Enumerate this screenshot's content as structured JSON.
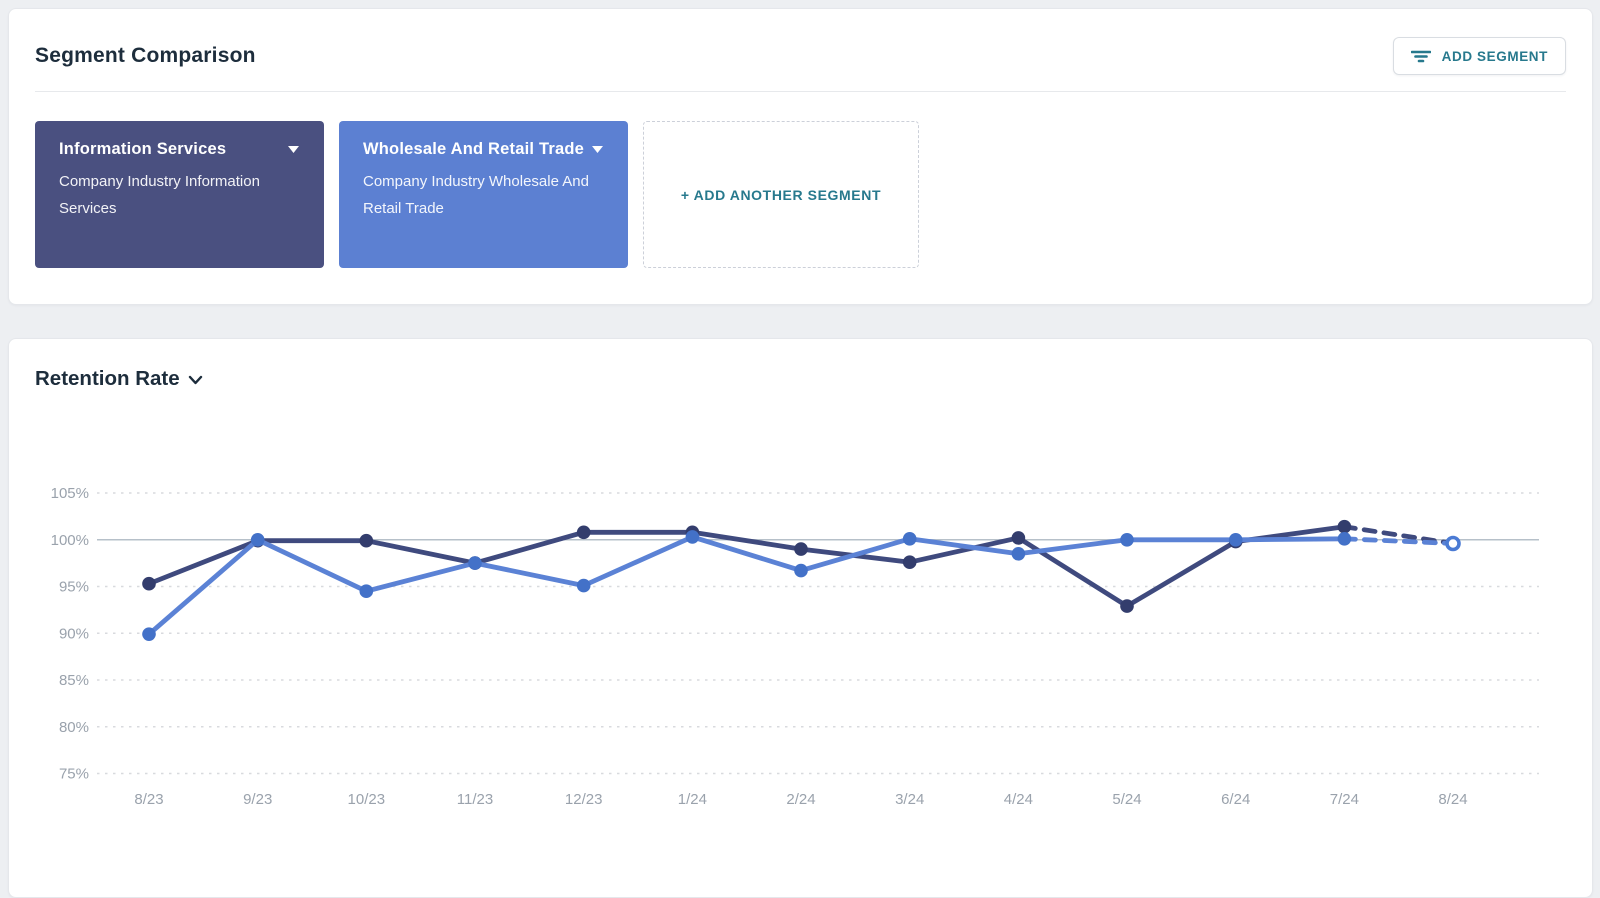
{
  "header": {
    "title": "Segment Comparison",
    "add_segment_button": {
      "label": "ADD SEGMENT",
      "icon": "filter-icon",
      "color": "#27798d"
    }
  },
  "segments": [
    {
      "name": "Information Services",
      "description": "Company Industry Information Services",
      "color": "#4a5080"
    },
    {
      "name": "Wholesale And Retail Trade",
      "description": "Company Industry Wholesale And Retail Trade",
      "color": "#5c80d2"
    }
  ],
  "add_another_segment": {
    "label": "+ ADD ANOTHER SEGMENT"
  },
  "chart_card": {
    "title": "Retention Rate",
    "title_caret_icon": "chevron-down-icon"
  },
  "chart_data": {
    "type": "line",
    "title": "Retention Rate",
    "x": [
      "8/23",
      "9/23",
      "10/23",
      "11/23",
      "12/23",
      "1/24",
      "2/24",
      "3/24",
      "4/24",
      "5/24",
      "6/24",
      "7/24",
      "8/24"
    ],
    "yticks": [
      "105%",
      "100%",
      "95%",
      "90%",
      "85%",
      "80%",
      "75%"
    ],
    "ylim": [
      75,
      105
    ],
    "grid": "horizontal-dashed",
    "solid_gridline_at": 100,
    "legend": "none",
    "series": [
      {
        "name": "Information Services",
        "color": "#3f4a7e",
        "dot_color": "#333d6d",
        "values": [
          95.3,
          99.9,
          99.9,
          97.5,
          100.8,
          100.8,
          99.0,
          97.6,
          100.2,
          92.9,
          99.8,
          101.4,
          99.6
        ],
        "projected_from_index": 11
      },
      {
        "name": "Wholesale And Retail Trade",
        "color": "#5b82d5",
        "dot_color": "#4371c8",
        "values": [
          89.9,
          100.0,
          94.5,
          97.5,
          95.1,
          100.3,
          96.7,
          100.1,
          98.5,
          100.0,
          100.0,
          100.1,
          99.6
        ],
        "projected_from_index": 11
      }
    ],
    "projection_end_marker": {
      "shape": "open-circle",
      "stroke": "#4b7bd4"
    }
  }
}
